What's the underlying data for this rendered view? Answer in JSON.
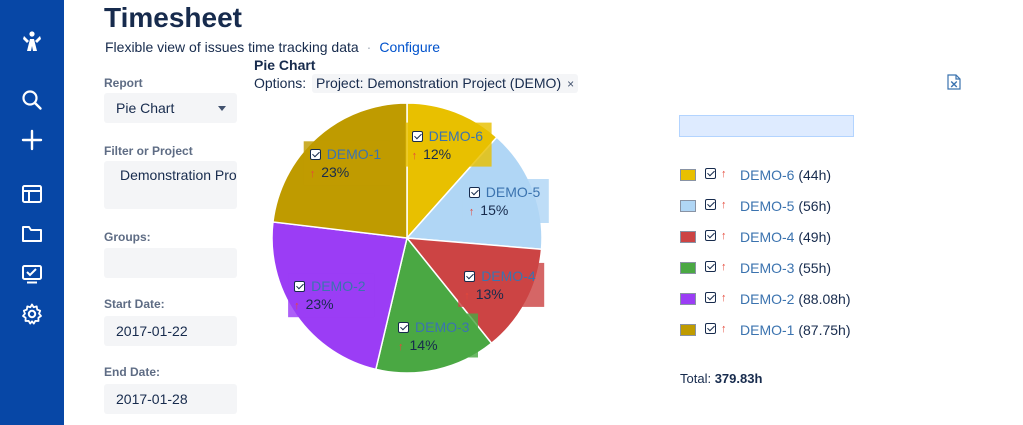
{
  "page": {
    "title": "Timesheet",
    "subtitle": "Flexible view of issues time tracking data",
    "separator": "·",
    "configure_label": "Configure"
  },
  "sidebar": {
    "icons": [
      "jira-logo-icon",
      "search-icon",
      "create-icon",
      "board-icon",
      "projects-icon",
      "reports-icon",
      "settings-icon"
    ]
  },
  "form": {
    "report_label": "Report",
    "report_value": "Pie Chart",
    "filter_label": "Filter or Project",
    "filter_value": "Demonstration Pro",
    "groups_label": "Groups:",
    "groups_value": "",
    "start_label": "Start Date:",
    "start_value": "2017-01-22",
    "end_label": "End Date:",
    "end_value": "2017-01-28"
  },
  "chart_header": {
    "title": "Pie Chart",
    "options_label": "Options:",
    "chip_text": "Project: Demonstration Project (DEMO)",
    "chip_close": "×"
  },
  "chart_data": {
    "type": "pie",
    "slices": [
      {
        "key": "DEMO-6",
        "percent": "12%",
        "hours": 44,
        "hours_label": "(44h)",
        "color": "#e8c000"
      },
      {
        "key": "DEMO-5",
        "percent": "15%",
        "hours": 56,
        "hours_label": "(56h)",
        "color": "#b0d6f5"
      },
      {
        "key": "DEMO-4",
        "percent": "13%",
        "hours": 49,
        "hours_label": "(49h)",
        "color": "#cc4444"
      },
      {
        "key": "DEMO-3",
        "percent": "14%",
        "hours": 55,
        "hours_label": "(55h)",
        "color": "#4aa843"
      },
      {
        "key": "DEMO-2",
        "percent": "23%",
        "hours": 88.08,
        "hours_label": "(88.08h)",
        "color": "#9b3df5"
      },
      {
        "key": "DEMO-1",
        "percent": "23%",
        "hours": 87.75,
        "hours_label": "(87.75h)",
        "color": "#bf9b00"
      }
    ],
    "total_label": "Total:",
    "total_value": "379.83h"
  },
  "colors": {
    "sidebar": "#0747a6",
    "link": "#0052cc",
    "issue_link": "#3b73af",
    "priority_arrow": "#e5493a"
  }
}
